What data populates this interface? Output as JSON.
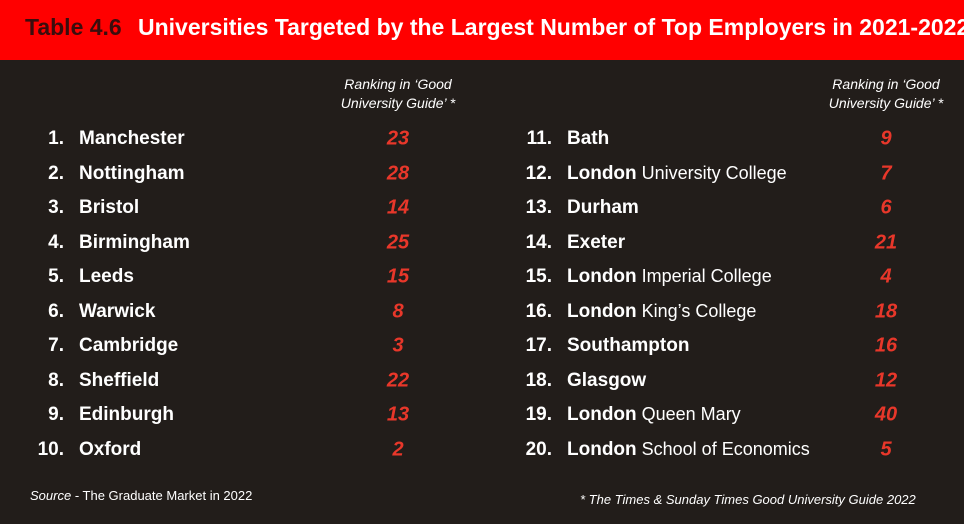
{
  "header": {
    "label": "Table 4.6",
    "title": "Universities Targeted by the Largest Number of Top Employers in 2021-2022"
  },
  "columns": [
    {
      "ranking_header": "Ranking in ‘Good University Guide’ *",
      "rows": [
        {
          "rank": "1.",
          "name": "Manchester",
          "ranking": 23
        },
        {
          "rank": "2.",
          "name": "Nottingham",
          "ranking": 28
        },
        {
          "rank": "3.",
          "name": "Bristol",
          "ranking": 14
        },
        {
          "rank": "4.",
          "name": "Birmingham",
          "ranking": 25
        },
        {
          "rank": "5.",
          "name": "Leeds",
          "ranking": 15
        },
        {
          "rank": "6.",
          "name": "Warwick",
          "ranking": 8
        },
        {
          "rank": "7.",
          "name": "Cambridge",
          "ranking": 3
        },
        {
          "rank": "8.",
          "name": "Sheffield",
          "ranking": 22
        },
        {
          "rank": "9.",
          "name": "Edinburgh",
          "ranking": 13
        },
        {
          "rank": "10.",
          "name": "Oxford",
          "ranking": 2
        }
      ]
    },
    {
      "ranking_header": "Ranking in ‘Good University Guide’ *",
      "rows": [
        {
          "rank": "11.",
          "name": "Bath",
          "ranking": 9
        },
        {
          "rank": "12.",
          "name": "London",
          "college": "University College",
          "ranking": 7
        },
        {
          "rank": "13.",
          "name": "Durham",
          "ranking": 6
        },
        {
          "rank": "14.",
          "name": "Exeter",
          "ranking": 21
        },
        {
          "rank": "15.",
          "name": "London",
          "college": "Imperial College",
          "ranking": 4
        },
        {
          "rank": "16.",
          "name": "London",
          "college": "King’s College",
          "ranking": 18
        },
        {
          "rank": "17.",
          "name": "Southampton",
          "ranking": 16
        },
        {
          "rank": "18.",
          "name": "Glasgow",
          "ranking": 12
        },
        {
          "rank": "19.",
          "name": "London",
          "college": "Queen Mary",
          "ranking": 40
        },
        {
          "rank": "20.",
          "name": "London",
          "college": "School of Economics",
          "ranking": 5
        }
      ]
    }
  ],
  "footer": {
    "source_label": "Source",
    "source_text": "- The Graduate Market in 2022",
    "note": "* The Times & Sunday Times Good University Guide 2022"
  }
}
